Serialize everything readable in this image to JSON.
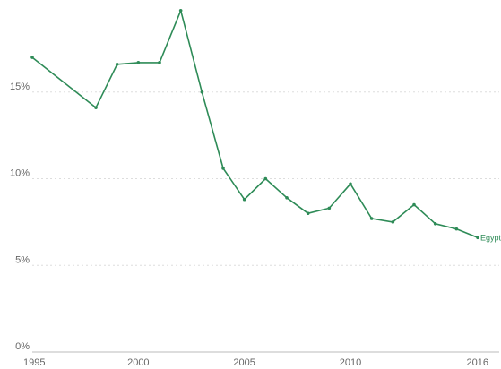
{
  "chart_data": {
    "type": "line",
    "title": "",
    "xlabel": "",
    "ylabel": "",
    "x": [
      1995,
      1998,
      1999,
      2000,
      2001,
      2002,
      2003,
      2004,
      2005,
      2006,
      2007,
      2008,
      2009,
      2010,
      2011,
      2012,
      2013,
      2014,
      2015,
      2016
    ],
    "series": [
      {
        "name": "Egypt",
        "color": "#2e8b57",
        "values": [
          17.0,
          14.1,
          16.6,
          16.7,
          16.7,
          19.7,
          15.0,
          10.6,
          8.8,
          10.0,
          8.9,
          8.0,
          8.3,
          9.7,
          7.7,
          7.5,
          8.5,
          7.4,
          7.1,
          6.6
        ]
      }
    ],
    "xlim": [
      1995,
      2016
    ],
    "ylim": [
      0,
      20
    ],
    "y_ticks": [
      0,
      5,
      10,
      15
    ],
    "y_tick_labels": [
      "0%",
      "5%",
      "10%",
      "15%"
    ],
    "x_ticks": [
      1995,
      2000,
      2005,
      2010,
      2016
    ],
    "x_tick_labels": [
      "1995",
      "2000",
      "2005",
      "2010",
      "2016"
    ],
    "grid": true,
    "legend": "inline-end-label"
  }
}
